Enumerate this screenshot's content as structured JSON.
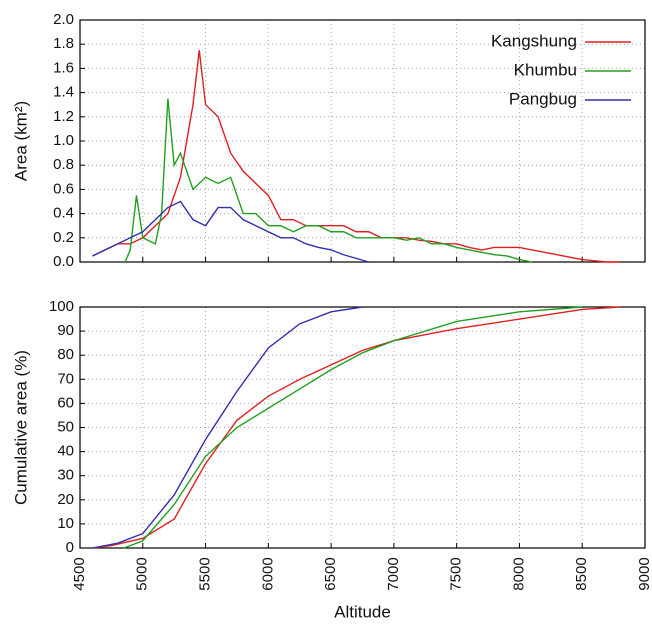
{
  "chart_data": [
    {
      "type": "line",
      "ylabel": "Area (km²)",
      "xlim": [
        4500,
        9000
      ],
      "xticks": [
        4500,
        5000,
        5500,
        6000,
        6500,
        7000,
        7500,
        8000,
        8500,
        9000
      ],
      "ylim": [
        0,
        2
      ],
      "yticks": [
        {
          "value": 0,
          "label": "0.0"
        },
        {
          "value": 0.2,
          "label": "0.2"
        },
        {
          "value": 0.4,
          "label": "0.4"
        },
        {
          "value": 0.6,
          "label": "0.6"
        },
        {
          "value": 0.8,
          "label": "0.8"
        },
        {
          "value": 1,
          "label": "1.0"
        },
        {
          "value": 1.2,
          "label": "1.2"
        },
        {
          "value": 1.4,
          "label": "1.4"
        },
        {
          "value": 1.6,
          "label": "1.6"
        },
        {
          "value": 1.8,
          "label": "1.8"
        },
        {
          "value": 2,
          "label": "2.0"
        }
      ],
      "grid": true,
      "legend": "upper right",
      "series": [
        {
          "name": "Kangshung",
          "color": "#e02020",
          "x": [
            4600,
            4700,
            4800,
            4900,
            5000,
            5100,
            5200,
            5300,
            5400,
            5450,
            5500,
            5600,
            5700,
            5800,
            5900,
            6000,
            6100,
            6200,
            6300,
            6400,
            6500,
            6600,
            6700,
            6800,
            6900,
            7000,
            7100,
            7200,
            7300,
            7400,
            7500,
            7600,
            7700,
            7800,
            7900,
            8000,
            8100,
            8200,
            8300,
            8400,
            8500,
            8600,
            8700,
            8800
          ],
          "values": [
            0.05,
            0.1,
            0.15,
            0.15,
            0.2,
            0.3,
            0.4,
            0.7,
            1.3,
            1.75,
            1.3,
            1.2,
            0.9,
            0.75,
            0.65,
            0.55,
            0.35,
            0.35,
            0.3,
            0.3,
            0.3,
            0.3,
            0.25,
            0.25,
            0.2,
            0.2,
            0.2,
            0.18,
            0.17,
            0.15,
            0.15,
            0.12,
            0.1,
            0.12,
            0.12,
            0.12,
            0.1,
            0.08,
            0.06,
            0.04,
            0.02,
            0.01,
            0,
            0
          ]
        },
        {
          "name": "Khumbu",
          "color": "#20a020",
          "x": [
            4860,
            4900,
            4950,
            5000,
            5100,
            5150,
            5200,
            5250,
            5300,
            5400,
            5500,
            5600,
            5700,
            5800,
            5900,
            6000,
            6100,
            6200,
            6300,
            6400,
            6500,
            6600,
            6700,
            6800,
            6900,
            7000,
            7100,
            7200,
            7300,
            7400,
            7500,
            7600,
            7700,
            7800,
            7900,
            8000,
            8100
          ],
          "values": [
            0,
            0.1,
            0.55,
            0.2,
            0.15,
            0.4,
            1.35,
            0.8,
            0.9,
            0.6,
            0.7,
            0.65,
            0.7,
            0.4,
            0.4,
            0.3,
            0.3,
            0.25,
            0.3,
            0.3,
            0.25,
            0.25,
            0.2,
            0.2,
            0.2,
            0.2,
            0.18,
            0.2,
            0.15,
            0.15,
            0.12,
            0.1,
            0.08,
            0.06,
            0.05,
            0.02,
            0
          ]
        },
        {
          "name": "Pangbug",
          "color": "#3030b0",
          "x": [
            4600,
            4700,
            4800,
            4900,
            5000,
            5100,
            5200,
            5300,
            5400,
            5500,
            5600,
            5700,
            5800,
            5900,
            6000,
            6100,
            6200,
            6300,
            6400,
            6500,
            6600,
            6700,
            6800
          ],
          "values": [
            0.05,
            0.1,
            0.15,
            0.2,
            0.25,
            0.35,
            0.45,
            0.5,
            0.35,
            0.3,
            0.45,
            0.45,
            0.35,
            0.3,
            0.25,
            0.2,
            0.2,
            0.15,
            0.12,
            0.1,
            0.06,
            0.03,
            0
          ]
        }
      ]
    },
    {
      "type": "line",
      "ylabel": "Cumulative area (%)",
      "xlabel": "Altitude",
      "xlim": [
        4500,
        9000
      ],
      "xticks": [
        4500,
        5000,
        5500,
        6000,
        6500,
        7000,
        7500,
        8000,
        8500,
        9000
      ],
      "ylim": [
        0,
        100
      ],
      "yticks": [
        0,
        10,
        20,
        30,
        40,
        50,
        60,
        70,
        80,
        90,
        100
      ],
      "grid": true,
      "series": [
        {
          "color": "#e02020",
          "x": [
            4600,
            4750,
            5000,
            5250,
            5500,
            5750,
            6000,
            6250,
            6500,
            6750,
            7000,
            7500,
            8000,
            8500,
            8800
          ],
          "values": [
            0,
            1,
            4,
            12,
            35,
            53,
            63,
            70,
            76,
            82,
            86,
            91,
            95,
            99,
            100
          ]
        },
        {
          "color": "#20a020",
          "x": [
            4850,
            5000,
            5250,
            5500,
            5750,
            6000,
            6250,
            6500,
            6750,
            7000,
            7500,
            8000,
            8500
          ],
          "values": [
            0,
            3,
            18,
            38,
            50,
            58,
            66,
            74,
            81,
            86,
            94,
            98,
            100
          ]
        },
        {
          "color": "#3030b0",
          "x": [
            4600,
            4800,
            5000,
            5250,
            5500,
            5750,
            6000,
            6250,
            6500,
            6750
          ],
          "values": [
            0,
            2,
            6,
            22,
            45,
            65,
            83,
            93,
            98,
            100
          ]
        }
      ]
    }
  ]
}
